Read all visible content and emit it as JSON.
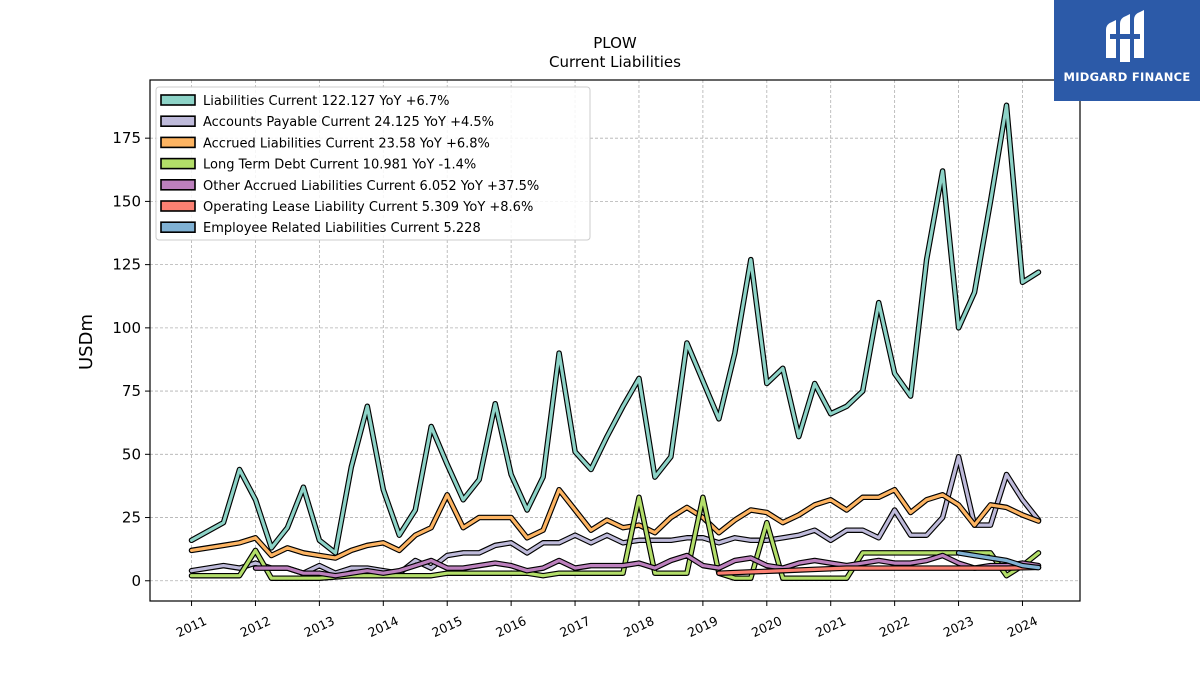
{
  "title": "PLOW",
  "subtitle": "Current  Liabilities",
  "brand": {
    "name": "MIDGARD FINANCE"
  },
  "chart_data": {
    "type": "line",
    "ylabel": "USDm",
    "ylim": [
      -8,
      198
    ],
    "xlim": [
      2010.35,
      2024.9
    ],
    "yticks": [
      0,
      25,
      50,
      75,
      100,
      125,
      150,
      175
    ],
    "xticks": [
      "2011",
      "2012",
      "2013",
      "2014",
      "2015",
      "2016",
      "2017",
      "2018",
      "2019",
      "2020",
      "2021",
      "2022",
      "2023",
      "2024"
    ],
    "grid": true,
    "legend_position": "top-left",
    "series": [
      {
        "name": "Liabilities Current",
        "legend": "Liabilities Current  122.127 YoY +6.7%",
        "color": "#8dd3c7",
        "points": [
          [
            2011.0,
            16
          ],
          [
            2011.5,
            23
          ],
          [
            2011.75,
            44
          ],
          [
            2012.0,
            32
          ],
          [
            2012.25,
            13
          ],
          [
            2012.5,
            21
          ],
          [
            2012.75,
            37
          ],
          [
            2013.0,
            16
          ],
          [
            2013.25,
            11
          ],
          [
            2013.5,
            45
          ],
          [
            2013.75,
            69
          ],
          [
            2014.0,
            36
          ],
          [
            2014.25,
            18
          ],
          [
            2014.5,
            28
          ],
          [
            2014.75,
            61
          ],
          [
            2015.0,
            46
          ],
          [
            2015.25,
            32
          ],
          [
            2015.5,
            40
          ],
          [
            2015.75,
            70
          ],
          [
            2016.0,
            42
          ],
          [
            2016.25,
            28
          ],
          [
            2016.5,
            41
          ],
          [
            2016.75,
            90
          ],
          [
            2017.0,
            51
          ],
          [
            2017.25,
            44
          ],
          [
            2017.5,
            57
          ],
          [
            2017.75,
            69
          ],
          [
            2018.0,
            80
          ],
          [
            2018.25,
            41
          ],
          [
            2018.5,
            49
          ],
          [
            2018.75,
            94
          ],
          [
            2019.0,
            79
          ],
          [
            2019.25,
            64
          ],
          [
            2019.5,
            90
          ],
          [
            2019.75,
            127
          ],
          [
            2020.0,
            78
          ],
          [
            2020.25,
            84
          ],
          [
            2020.5,
            57
          ],
          [
            2020.75,
            78
          ],
          [
            2021.0,
            66
          ],
          [
            2021.25,
            69
          ],
          [
            2021.5,
            75
          ],
          [
            2021.75,
            110
          ],
          [
            2022.0,
            82
          ],
          [
            2022.25,
            73
          ],
          [
            2022.5,
            127
          ],
          [
            2022.75,
            162
          ],
          [
            2023.0,
            100
          ],
          [
            2023.25,
            114
          ],
          [
            2023.5,
            150
          ],
          [
            2023.75,
            188
          ],
          [
            2024.0,
            118
          ],
          [
            2024.25,
            122
          ]
        ]
      },
      {
        "name": "Accounts Payable Current",
        "legend": "Accounts Payable Current  24.125 YoY +4.5%",
        "color": "#bebada",
        "points": [
          [
            2011.0,
            4
          ],
          [
            2011.5,
            6
          ],
          [
            2011.75,
            5
          ],
          [
            2012.0,
            7
          ],
          [
            2012.25,
            5
          ],
          [
            2012.5,
            5
          ],
          [
            2012.75,
            3
          ],
          [
            2013.0,
            6
          ],
          [
            2013.25,
            3
          ],
          [
            2013.5,
            5
          ],
          [
            2013.75,
            5
          ],
          [
            2014.0,
            4
          ],
          [
            2014.25,
            3
          ],
          [
            2014.5,
            8
          ],
          [
            2014.75,
            5
          ],
          [
            2015.0,
            10
          ],
          [
            2015.25,
            11
          ],
          [
            2015.5,
            11
          ],
          [
            2015.75,
            14
          ],
          [
            2016.0,
            15
          ],
          [
            2016.25,
            11
          ],
          [
            2016.5,
            15
          ],
          [
            2016.75,
            15
          ],
          [
            2017.0,
            18
          ],
          [
            2017.25,
            15
          ],
          [
            2017.5,
            18
          ],
          [
            2017.75,
            15
          ],
          [
            2018.0,
            16
          ],
          [
            2018.25,
            16
          ],
          [
            2018.5,
            16
          ],
          [
            2018.75,
            17
          ],
          [
            2019.0,
            17
          ],
          [
            2019.25,
            15
          ],
          [
            2019.5,
            17
          ],
          [
            2019.75,
            16
          ],
          [
            2020.0,
            16
          ],
          [
            2020.25,
            17
          ],
          [
            2020.5,
            18
          ],
          [
            2020.75,
            20
          ],
          [
            2021.0,
            16
          ],
          [
            2021.25,
            20
          ],
          [
            2021.5,
            20
          ],
          [
            2021.75,
            17
          ],
          [
            2022.0,
            28
          ],
          [
            2022.25,
            18
          ],
          [
            2022.5,
            18
          ],
          [
            2022.75,
            25
          ],
          [
            2023.0,
            49
          ],
          [
            2023.25,
            22
          ],
          [
            2023.5,
            22
          ],
          [
            2023.75,
            42
          ],
          [
            2024.0,
            32
          ],
          [
            2024.25,
            24
          ]
        ]
      },
      {
        "name": "Accrued Liabilities Current",
        "legend": "Accrued Liabilities Current  23.58 YoY +6.8%",
        "color": "#fdb462",
        "points": [
          [
            2011.0,
            12
          ],
          [
            2011.5,
            14
          ],
          [
            2011.75,
            15
          ],
          [
            2012.0,
            17
          ],
          [
            2012.25,
            10
          ],
          [
            2012.5,
            13
          ],
          [
            2012.75,
            11
          ],
          [
            2013.0,
            10
          ],
          [
            2013.25,
            9
          ],
          [
            2013.5,
            12
          ],
          [
            2013.75,
            14
          ],
          [
            2014.0,
            15
          ],
          [
            2014.25,
            12
          ],
          [
            2014.5,
            18
          ],
          [
            2014.75,
            21
          ],
          [
            2015.0,
            34
          ],
          [
            2015.25,
            21
          ],
          [
            2015.5,
            25
          ],
          [
            2015.75,
            25
          ],
          [
            2016.0,
            25
          ],
          [
            2016.25,
            17
          ],
          [
            2016.5,
            20
          ],
          [
            2016.75,
            36
          ],
          [
            2017.0,
            28
          ],
          [
            2017.25,
            20
          ],
          [
            2017.5,
            24
          ],
          [
            2017.75,
            21
          ],
          [
            2018.0,
            22
          ],
          [
            2018.25,
            19
          ],
          [
            2018.5,
            25
          ],
          [
            2018.75,
            29
          ],
          [
            2019.0,
            25
          ],
          [
            2019.25,
            19
          ],
          [
            2019.5,
            24
          ],
          [
            2019.75,
            28
          ],
          [
            2020.0,
            27
          ],
          [
            2020.25,
            23
          ],
          [
            2020.5,
            26
          ],
          [
            2020.75,
            30
          ],
          [
            2021.0,
            32
          ],
          [
            2021.25,
            28
          ],
          [
            2021.5,
            33
          ],
          [
            2021.75,
            33
          ],
          [
            2022.0,
            36
          ],
          [
            2022.25,
            27
          ],
          [
            2022.5,
            32
          ],
          [
            2022.75,
            34
          ],
          [
            2023.0,
            30
          ],
          [
            2023.25,
            22
          ],
          [
            2023.5,
            30
          ],
          [
            2023.75,
            29
          ],
          [
            2024.0,
            26
          ],
          [
            2024.25,
            23.6
          ]
        ]
      },
      {
        "name": "Long Term Debt Current",
        "legend": "Long Term Debt Current  10.981 YoY -1.4%",
        "color": "#b3de69",
        "points": [
          [
            2011.0,
            2
          ],
          [
            2011.5,
            2
          ],
          [
            2011.75,
            2
          ],
          [
            2012.0,
            12
          ],
          [
            2012.25,
            1
          ],
          [
            2013.0,
            1
          ],
          [
            2013.5,
            2
          ],
          [
            2014.0,
            2
          ],
          [
            2014.5,
            2
          ],
          [
            2014.75,
            2
          ],
          [
            2015.0,
            3
          ],
          [
            2015.5,
            3
          ],
          [
            2016.0,
            3
          ],
          [
            2016.25,
            3
          ],
          [
            2016.5,
            2
          ],
          [
            2016.75,
            3
          ],
          [
            2017.0,
            3
          ],
          [
            2017.75,
            3
          ],
          [
            2018.0,
            33
          ],
          [
            2018.25,
            3
          ],
          [
            2018.75,
            3
          ],
          [
            2019.0,
            33
          ],
          [
            2019.25,
            3
          ],
          [
            2019.5,
            1
          ],
          [
            2019.75,
            1
          ],
          [
            2020.0,
            23
          ],
          [
            2020.25,
            1
          ],
          [
            2020.75,
            1
          ],
          [
            2021.0,
            1
          ],
          [
            2021.25,
            1
          ],
          [
            2021.5,
            11
          ],
          [
            2022.0,
            11
          ],
          [
            2022.5,
            11
          ],
          [
            2023.0,
            11
          ],
          [
            2023.5,
            11
          ],
          [
            2023.75,
            2
          ],
          [
            2024.0,
            6
          ],
          [
            2024.25,
            11
          ]
        ]
      },
      {
        "name": "Other Accrued Liabilities Current",
        "legend": "Other Accrued Liabilities Current  6.052 YoY +37.5%",
        "color": "#bc80bd",
        "points": [
          [
            2012.0,
            5
          ],
          [
            2012.5,
            5
          ],
          [
            2012.75,
            3
          ],
          [
            2013.0,
            3
          ],
          [
            2013.25,
            2
          ],
          [
            2013.5,
            3
          ],
          [
            2013.75,
            4
          ],
          [
            2014.0,
            3
          ],
          [
            2014.25,
            4
          ],
          [
            2014.5,
            6
          ],
          [
            2014.75,
            8
          ],
          [
            2015.0,
            5
          ],
          [
            2015.25,
            5
          ],
          [
            2015.5,
            6
          ],
          [
            2015.75,
            7
          ],
          [
            2016.0,
            6
          ],
          [
            2016.25,
            4
          ],
          [
            2016.5,
            5
          ],
          [
            2016.75,
            8
          ],
          [
            2017.0,
            5
          ],
          [
            2017.25,
            6
          ],
          [
            2017.5,
            6
          ],
          [
            2017.75,
            6
          ],
          [
            2018.0,
            7
          ],
          [
            2018.25,
            5
          ],
          [
            2018.5,
            8
          ],
          [
            2018.75,
            10
          ],
          [
            2019.0,
            6
          ],
          [
            2019.25,
            5
          ],
          [
            2019.5,
            8
          ],
          [
            2019.75,
            9
          ],
          [
            2020.0,
            6
          ],
          [
            2020.25,
            5
          ],
          [
            2020.5,
            7
          ],
          [
            2020.75,
            8
          ],
          [
            2021.0,
            7
          ],
          [
            2021.25,
            6
          ],
          [
            2021.5,
            7
          ],
          [
            2021.75,
            8
          ],
          [
            2022.0,
            7
          ],
          [
            2022.25,
            7
          ],
          [
            2022.5,
            8
          ],
          [
            2022.75,
            10
          ],
          [
            2023.0,
            7
          ],
          [
            2023.25,
            5
          ],
          [
            2023.5,
            6
          ],
          [
            2023.75,
            6
          ],
          [
            2024.0,
            7
          ],
          [
            2024.25,
            6
          ]
        ]
      },
      {
        "name": "Operating Lease Liability Current",
        "legend": "Operating Lease Liability Current  5.309 YoY +8.6%",
        "color": "#fb8072",
        "points": [
          [
            2019.25,
            3
          ],
          [
            2019.75,
            3.5
          ],
          [
            2020.25,
            4
          ],
          [
            2020.75,
            4.5
          ],
          [
            2021.25,
            5
          ],
          [
            2021.75,
            5
          ],
          [
            2022.25,
            5
          ],
          [
            2022.75,
            5
          ],
          [
            2023.25,
            5
          ],
          [
            2023.75,
            5
          ],
          [
            2024.25,
            5.3
          ]
        ]
      },
      {
        "name": "Employee Related Liabilities Current",
        "legend": "Employee Related Liabilities Current  5.228",
        "color": "#80b1d3",
        "points": [
          [
            2023.0,
            11
          ],
          [
            2023.25,
            10
          ],
          [
            2023.5,
            9
          ],
          [
            2023.75,
            8
          ],
          [
            2024.0,
            6
          ],
          [
            2024.25,
            5.2
          ]
        ]
      }
    ]
  }
}
